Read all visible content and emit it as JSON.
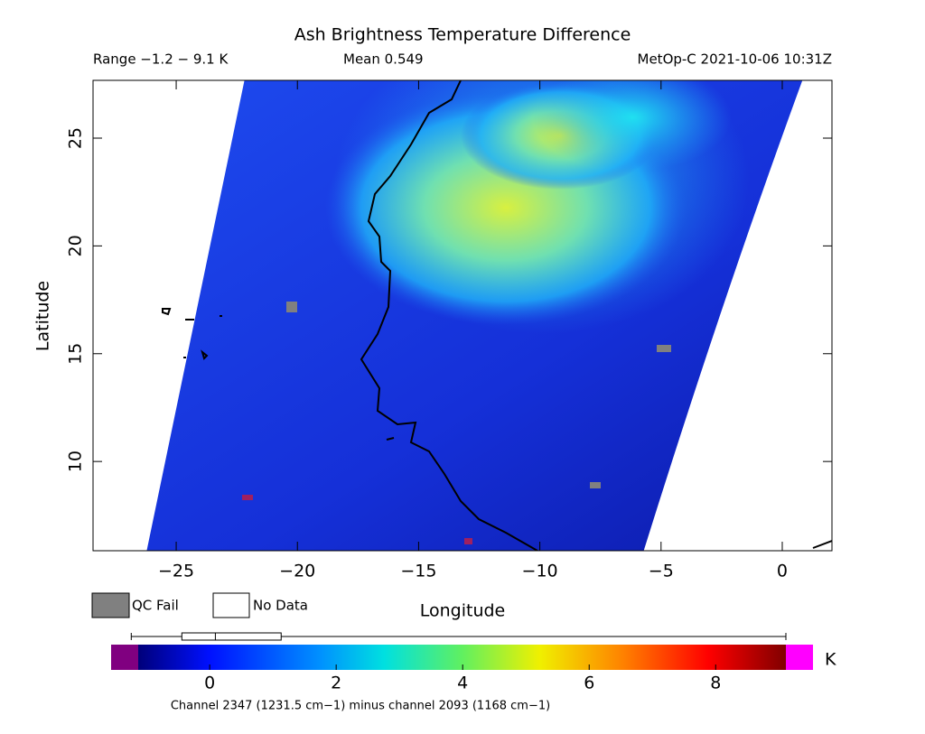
{
  "header": {
    "title": "Ash Brightness Temperature Difference",
    "range": "Range −1.2 − 9.1 K",
    "mean": "Mean 0.549",
    "source": "MetOp-C 2021-10-06 10:31Z"
  },
  "map": {
    "xlabel": "Longitude",
    "ylabel": "Latitude",
    "xlim": [
      -28.43,
      2.05
    ],
    "ylim": [
      5.86,
      27.68
    ],
    "xticks": [
      {
        "value": -25,
        "label": "−25"
      },
      {
        "value": -20,
        "label": "−20"
      },
      {
        "value": -15,
        "label": "−15"
      },
      {
        "value": -10,
        "label": "−10"
      },
      {
        "value": -5,
        "label": "−5"
      },
      0
    ],
    "yticks": [
      10,
      15,
      20,
      25
    ]
  },
  "legend": {
    "qc_fail": "QC Fail",
    "no_data": "No Data"
  },
  "colorbar": {
    "clim": [
      -1.13,
      9.11
    ],
    "ticks": [
      0,
      2,
      4,
      6,
      8
    ],
    "unit": "K",
    "caption": "Channel 2347 (1231.5 cm−1) minus channel 2093 (1168 cm−1)",
    "boxplot": {
      "min": -1.24,
      "q1": -0.44,
      "median": 0.09,
      "q3": 1.13,
      "max": 9.11
    }
  }
}
